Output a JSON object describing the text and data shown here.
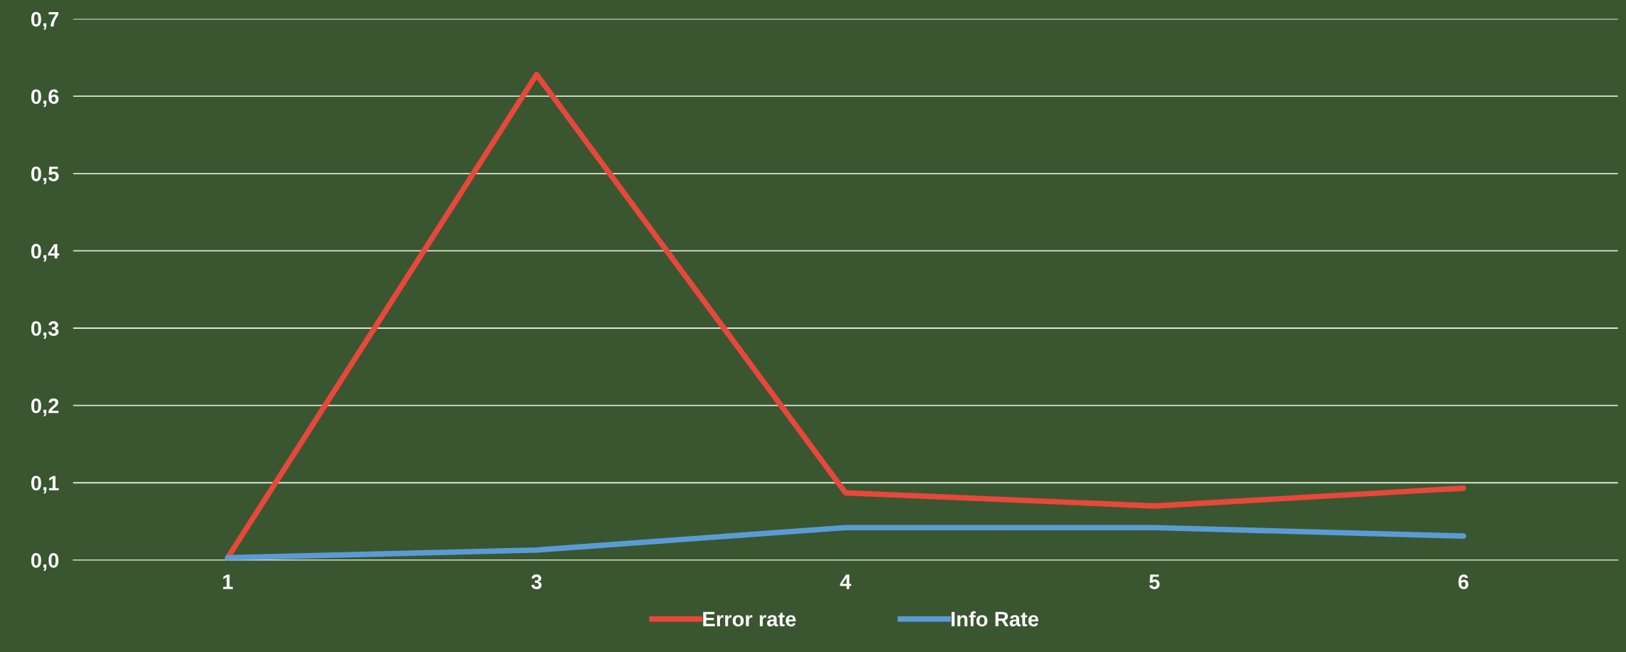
{
  "chart_data": {
    "type": "line",
    "categories": [
      "1",
      "3",
      "4",
      "5",
      "6"
    ],
    "series": [
      {
        "name": "Error rate",
        "color": "#e8473c",
        "values": [
          0.003,
          0.628,
          0.087,
          0.07,
          0.093
        ]
      },
      {
        "name": "Info Rate",
        "color": "#5b9bd5",
        "values": [
          0.003,
          0.013,
          0.042,
          0.042,
          0.031
        ]
      }
    ],
    "ylim": [
      0,
      0.7
    ],
    "yticks": [
      {
        "value": 0,
        "label": "0,0"
      },
      {
        "value": 0.1,
        "label": "0,1"
      },
      {
        "value": 0.2,
        "label": "0,2"
      },
      {
        "value": 0.3,
        "label": "0,3"
      },
      {
        "value": 0.4,
        "label": "0,4"
      },
      {
        "value": 0.5,
        "label": "0,5"
      },
      {
        "value": 0.6,
        "label": "0,6"
      },
      {
        "value": 0.7,
        "label": "0,7"
      }
    ],
    "grid": "y",
    "legend": "bottom",
    "marker": "none",
    "line_style": "solid"
  }
}
